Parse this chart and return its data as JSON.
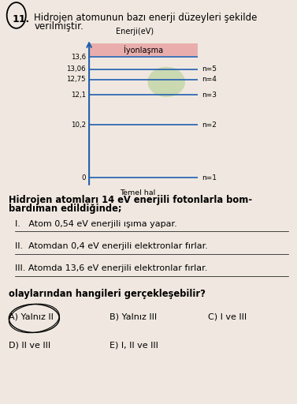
{
  "title_number": "11.",
  "title_line1": "Hidrojen atomunun bazı enerji düzeyleri şekilde",
  "title_line2": "verilmiştir.",
  "y_label": "Enerji(eV)",
  "ionization_label": "İyonlaşma",
  "x_label": "Temel hal",
  "energy_levels": [
    0,
    10.2,
    12.1,
    12.75,
    13.06,
    13.6
  ],
  "level_labels": [
    "n=1",
    "n=2",
    "n=3",
    "n=4",
    "n=5"
  ],
  "level_values_text": [
    "0",
    "10,2",
    "12,1",
    "12,75",
    "13,06",
    "13,6"
  ],
  "main_question_line1": "Hidrojen atomları 14 eV enerjili fotonlarla bom-",
  "main_question_line2": "bardıman edildiğinde;",
  "items": [
    "I.   Atom 0,54 eV enerjili ışıma yapar.",
    "II.  Atomdan 0,4 eV enerjili elektronlar fırlar.",
    "III. Atomda 13,6 eV enerjili elektronlar fırlar."
  ],
  "sub_question": "olaylarından hangileri gerçekleşebilir?",
  "choices_row1": [
    "A) Yalnız II",
    "B) Yalnız III",
    "C) I ve III"
  ],
  "choices_row2": [
    "D) II ve III",
    "E) I, II ve III"
  ],
  "bg_color": "#f0e8e0",
  "line_color": "#2060b0",
  "ionization_box_color": "#e8a0a0",
  "green_blob_color": "#a0c878"
}
